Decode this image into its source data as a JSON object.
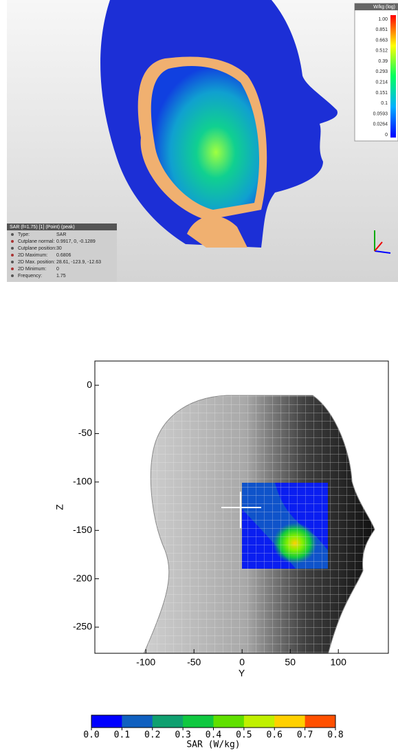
{
  "screenshot": {
    "legend": {
      "title": "W/kg (log)",
      "labels": [
        "1.00",
        "0.851",
        "0.663",
        "0.512",
        "0.39",
        "0.293",
        "0.214",
        "0.151",
        "0.1",
        "0.0593",
        "0.0264",
        "0"
      ]
    },
    "info": {
      "title": "SAR (f=1.75) [1] (Point) (peak)",
      "rows": [
        [
          "Type:",
          "SAR"
        ],
        [
          "Cutplane normal:",
          "0.9917, 0, -0.1289"
        ],
        [
          "Cutplane position:",
          "30"
        ],
        [
          "2D Maximum:",
          "0.6806"
        ],
        [
          "2D Max. position:",
          "28.61, -123.9, -12.63"
        ],
        [
          "2D Minimum:",
          "0"
        ],
        [
          "Frequency:",
          "1.75"
        ]
      ]
    }
  },
  "chart_data": {
    "type": "contour",
    "xlabel": "Y",
    "ylabel": "Z",
    "xlim": [
      -153,
      152
    ],
    "ylim": [
      -277,
      25
    ],
    "xticks": [
      -100,
      -50,
      0,
      50,
      100
    ],
    "yticks": [
      0,
      -50,
      -100,
      -150,
      -200,
      -250
    ],
    "colorbar": {
      "label": "SAR (W/kg)",
      "ticks": [
        {
          "value": 0,
          "label": "0.0"
        },
        0.1,
        0.2,
        0.3,
        0.4,
        0.5,
        0.6,
        0.7,
        0.8
      ],
      "colors": [
        "#0000ff",
        "#1060c0",
        "#10a070",
        "#10c840",
        "#60e000",
        "#c0f000",
        "#ffd000",
        "#ff5000"
      ]
    }
  }
}
